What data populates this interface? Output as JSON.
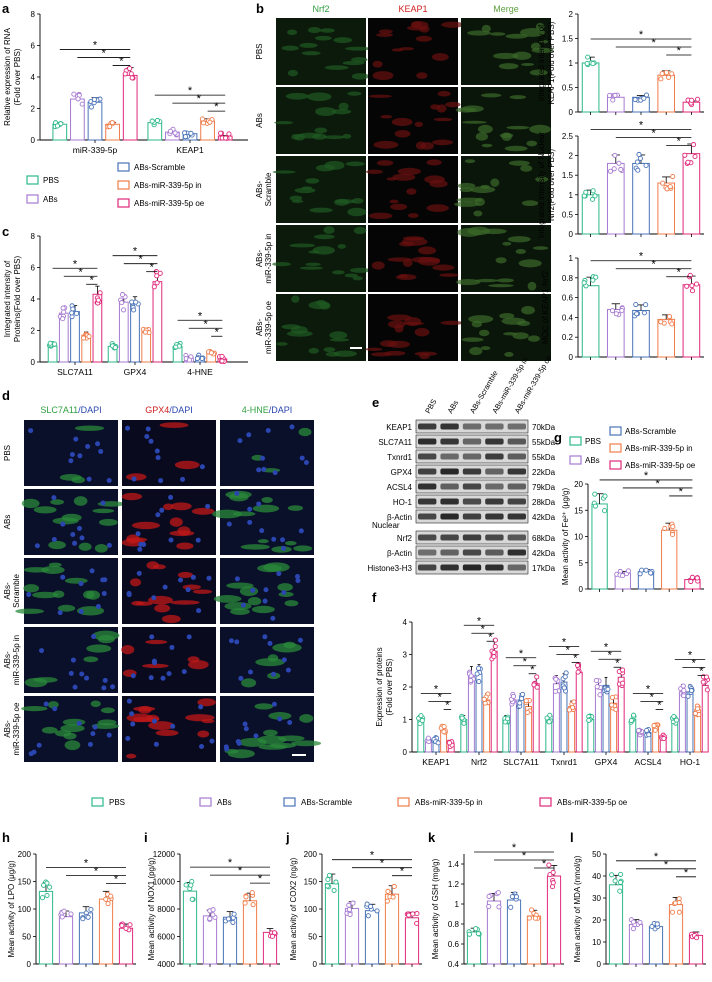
{
  "colors": {
    "PBS": "#2cb88a",
    "ABs": "#a77ad1",
    "ABs-Scramble": "#4a73b8",
    "ABs-miR-339-5p in": "#f07c4a",
    "ABs-miR-339-5p oe": "#e0287a"
  },
  "panels": {
    "a": "a",
    "b": "b",
    "c": "c",
    "d": "d",
    "e": "e",
    "f": "f",
    "g": "g",
    "h": "h",
    "i": "i",
    "j": "j",
    "k": "k",
    "l": "l"
  },
  "legend": {
    "pbs": "PBS",
    "abs": "ABs",
    "scr": "ABs-Scramble",
    "inh": "ABs-miR-339-5p in",
    "oe": "ABs-miR-339-5p oe"
  },
  "legend_c": {
    "abs1": "ABs-",
    "abs2": "Scramble"
  },
  "micro_b": {
    "cols": [
      "Nrf2",
      "KEAP1",
      "Merge"
    ],
    "rows": [
      "PBS",
      "ABs",
      "ABs-\nScramble",
      "ABs-\nmiR-339-5p in",
      "ABs-\nmiR-339-5p oe"
    ]
  },
  "micro_d": {
    "cols": [
      {
        "a": "SLC7A11",
        "b": "/DAPI"
      },
      {
        "a": "GPX4",
        "b": "/DAPI"
      },
      {
        "a": "4-HNE",
        "b": "/DAPI"
      }
    ],
    "rows": [
      "PBS",
      "ABs",
      "ABs-\nScramble",
      "ABs-\nmiR-339-5p in",
      "ABs-\nmiR-339-5p oe"
    ]
  },
  "blot_e": {
    "lanes": [
      "PBS",
      "ABs",
      "ABs-Scramble",
      "ABs-miR-339-5p in",
      "ABs-miR-339-5p oe"
    ],
    "rows": [
      [
        "KEAP1",
        "70kDa"
      ],
      [
        "SLC7A11",
        "55kDa"
      ],
      [
        "Txnrd1",
        "55kDa"
      ],
      [
        "GPX4",
        "22kDa"
      ],
      [
        "ACSL4",
        "79kDa"
      ],
      [
        "HO-1",
        "28kDa"
      ],
      [
        "β-Actin",
        "42kDa"
      ]
    ],
    "nuclear": "Nuclear",
    "nrows": [
      [
        "Nrf2",
        "68kDa"
      ],
      [
        "β-Actin",
        "42kDa"
      ],
      [
        "Histone3-H3",
        "17kDa"
      ]
    ]
  },
  "star": "*",
  "chart_data": [
    {
      "panel": "a",
      "type": "bar",
      "ylabel": "Relative expression of RNA\n(Fold over PBS)",
      "ylim": [
        0,
        8
      ],
      "yticks": [
        0,
        2,
        4,
        6,
        8
      ],
      "categories": [
        "miR-339-5p",
        "KEAP1"
      ],
      "series": [
        {
          "name": "PBS",
          "values": [
            1.0,
            1.1
          ]
        },
        {
          "name": "ABs",
          "values": [
            2.6,
            0.5
          ]
        },
        {
          "name": "ABs-Scramble",
          "values": [
            2.4,
            0.4
          ]
        },
        {
          "name": "ABs-miR-339-5p in",
          "values": [
            1.0,
            1.2
          ]
        },
        {
          "name": "ABs-miR-339-5p oe",
          "values": [
            4.1,
            0.25
          ]
        }
      ]
    },
    {
      "panel": "c",
      "type": "bar",
      "ylabel": "Integrated intensity of\nProteins(Fold over PBS)",
      "ylim": [
        0,
        8
      ],
      "yticks": [
        0,
        2,
        4,
        6,
        8
      ],
      "categories": [
        "SLC7A11",
        "GPX4",
        "4-HNE"
      ],
      "series": [
        {
          "name": "PBS",
          "values": [
            1.0,
            1.0,
            1.0
          ]
        },
        {
          "name": "ABs",
          "values": [
            3.1,
            3.8,
            0.3
          ]
        },
        {
          "name": "ABs-Scramble",
          "values": [
            3.2,
            3.7,
            0.3
          ]
        },
        {
          "name": "ABs-miR-339-5p in",
          "values": [
            1.7,
            1.9,
            0.6
          ]
        },
        {
          "name": "ABs-miR-339-5p oe",
          "values": [
            4.3,
            5.1,
            0.2
          ]
        }
      ]
    },
    {
      "panel": "b1",
      "type": "bar",
      "ylabel": "Integrated intensity of\nKEAP1(Fold over PBS)",
      "ylim": [
        0,
        2.0
      ],
      "yticks": [
        0.0,
        0.5,
        1.0,
        1.5,
        2.0
      ],
      "categories": [
        "PBS",
        "ABs",
        "ABs-Scramble",
        "ABs-miR-339-5p in",
        "ABs-miR-339-5p oe"
      ],
      "values": [
        1.0,
        0.3,
        0.3,
        0.75,
        0.2
      ]
    },
    {
      "panel": "b2",
      "type": "bar",
      "ylabel": "Integrated intensity of Nuclear\nNrf2(Fold over PBS)",
      "ylim": [
        0,
        2.5
      ],
      "yticks": [
        0.0,
        0.5,
        1.0,
        1.5,
        2.0,
        2.5
      ],
      "categories": [
        "PBS",
        "ABs",
        "ABs-Scramble",
        "ABs-miR-339-5p in",
        "ABs-miR-339-5p oe"
      ],
      "values": [
        1.0,
        1.8,
        1.8,
        1.3,
        2.05
      ]
    },
    {
      "panel": "b3",
      "type": "bar",
      "ylabel": "MOC of KEAP1-Nrf2",
      "ylim": [
        0,
        1.0
      ],
      "yticks": [
        0.0,
        0.2,
        0.4,
        0.6,
        0.8,
        1.0
      ],
      "categories": [
        "PBS",
        "ABs",
        "ABs-Scramble",
        "ABs-miR-339-5p in",
        "ABs-miR-339-5p oe"
      ],
      "values": [
        0.72,
        0.48,
        0.47,
        0.38,
        0.73
      ]
    },
    {
      "panel": "g",
      "type": "bar",
      "ylabel": "Mean activity of Fe²⁺ (μg/g)",
      "ylim": [
        0,
        20
      ],
      "yticks": [
        0,
        5,
        10,
        15,
        20
      ],
      "categories": [
        "PBS",
        "ABs",
        "ABs-Scramble",
        "ABs-miR-339-5p in",
        "ABs-miR-339-5p oe"
      ],
      "values": [
        16.2,
        3.0,
        3.3,
        11.2,
        1.8
      ]
    },
    {
      "panel": "f",
      "type": "bar",
      "ylabel": "Expression of  proteins\n(Fold over PBS)",
      "ylim": [
        0,
        4
      ],
      "yticks": [
        0,
        1,
        2,
        3,
        4
      ],
      "categories": [
        "KEAP1",
        "Nrf2",
        "SLC7A11",
        "Txnrd1",
        "GPX4",
        "ACSL4",
        "HO-1"
      ],
      "series": [
        {
          "name": "PBS",
          "values": [
            1.0,
            1.0,
            1.0,
            1.0,
            1.0,
            1.0,
            1.0
          ]
        },
        {
          "name": "ABs",
          "values": [
            0.35,
            2.35,
            1.6,
            2.1,
            2.0,
            0.6,
            1.85
          ]
        },
        {
          "name": "ABs-Scramble",
          "values": [
            0.35,
            2.4,
            1.6,
            2.15,
            2.05,
            0.6,
            1.85
          ]
        },
        {
          "name": "ABs-miR-339-5p in",
          "values": [
            0.7,
            1.6,
            1.4,
            1.4,
            1.5,
            0.75,
            1.3
          ]
        },
        {
          "name": "ABs-miR-339-5p oe",
          "values": [
            0.25,
            3.1,
            2.1,
            2.45,
            2.3,
            0.5,
            2.05
          ]
        }
      ]
    },
    {
      "panel": "h",
      "type": "bar",
      "ylabel": "Mean activity of LPO (μg/g)",
      "ylim": [
        0,
        200
      ],
      "yticks": [
        0,
        50,
        100,
        150,
        200
      ],
      "categories": [
        "PBS",
        "ABs",
        "ABs-Scramble",
        "ABs-miR-339-5p in",
        "ABs-miR-339-5p oe"
      ],
      "values": [
        132,
        86,
        93,
        118,
        65
      ]
    },
    {
      "panel": "i",
      "type": "bar",
      "ylabel": "Mean activity of NOX1 (pg/g)",
      "ylim": [
        4000,
        12000
      ],
      "yticks": [
        4000,
        6000,
        8000,
        10000,
        12000
      ],
      "categories": [
        "PBS",
        "ABs",
        "ABs-Scramble",
        "ABs-miR-339-5p in",
        "ABs-miR-339-5p oe"
      ],
      "values": [
        9300,
        7500,
        7400,
        8600,
        6300
      ]
    },
    {
      "panel": "j",
      "type": "bar",
      "ylabel": "Mean activity of COX2 (ng/g)",
      "ylim": [
        0,
        200
      ],
      "yticks": [
        0,
        50,
        100,
        150,
        200
      ],
      "categories": [
        "PBS",
        "ABs",
        "ABs-Scramble",
        "ABs-miR-339-5p in",
        "ABs-miR-339-5p oe"
      ],
      "values": [
        146,
        101,
        97,
        127,
        84
      ]
    },
    {
      "panel": "k",
      "type": "bar",
      "ylabel": "Mean activity of GSH (mg/g)",
      "ylim": [
        0.4,
        1.5
      ],
      "yticks": [
        0.4,
        0.6,
        0.8,
        1.0,
        1.2,
        1.4
      ],
      "categories": [
        "PBS",
        "ABs",
        "ABs-Scramble",
        "ABs-miR-339-5p in",
        "ABs-miR-339-5p oe"
      ],
      "values": [
        0.72,
        1.03,
        1.04,
        0.88,
        1.28
      ]
    },
    {
      "panel": "l",
      "type": "bar",
      "ylabel": "Mean activity of MDA (nmol/g)",
      "ylim": [
        0,
        50
      ],
      "yticks": [
        0,
        10,
        20,
        30,
        40,
        50
      ],
      "categories": [
        "PBS",
        "ABs",
        "ABs-Scramble",
        "ABs-miR-339-5p in",
        "ABs-miR-339-5p oe"
      ],
      "values": [
        36,
        18,
        17,
        27,
        13
      ]
    }
  ]
}
